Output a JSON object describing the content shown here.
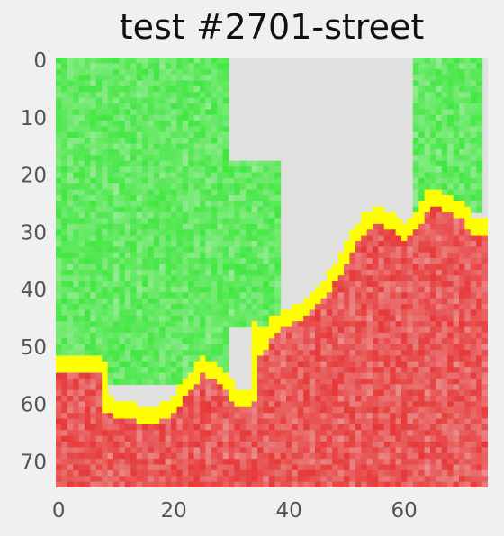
{
  "title": "test #2701-street",
  "chart_data": {
    "type": "heatmap",
    "title": "test #2701-street",
    "xlabel": "",
    "ylabel": "",
    "xlim": [
      0,
      74
    ],
    "ylim": [
      74,
      0
    ],
    "x_ticks": [
      "0",
      "20",
      "40",
      "60"
    ],
    "y_ticks": [
      "0",
      "10",
      "20",
      "30",
      "40",
      "50",
      "60",
      "70"
    ],
    "grid": false,
    "regions": {
      "positive_color": "#2ee62e",
      "negative_color": "#e62e2e",
      "neutral_color": "#e0e0de",
      "boundary_color": "#ffff00"
    },
    "green_areas": [
      {
        "x": [
          0,
          30
        ],
        "y": [
          0,
          57
        ]
      },
      {
        "x": [
          30,
          39
        ],
        "y": [
          18,
          47
        ]
      },
      {
        "x": [
          62,
          74
        ],
        "y": [
          0,
          27
        ]
      }
    ],
    "red_boundary_profile": {
      "x": [
        0,
        7,
        8,
        12,
        15,
        19,
        22,
        25,
        28,
        31,
        33,
        34,
        35,
        37,
        39,
        42,
        45,
        48,
        50,
        53,
        56,
        58,
        60,
        62,
        64,
        66,
        68,
        70,
        72,
        74
      ],
      "y": [
        53,
        53,
        60,
        61,
        62,
        61,
        57,
        53,
        55,
        59,
        59,
        47,
        50,
        46,
        45,
        44,
        41,
        37,
        33,
        28,
        27,
        28,
        30,
        28,
        24,
        24,
        25,
        26,
        29,
        29
      ]
    }
  }
}
